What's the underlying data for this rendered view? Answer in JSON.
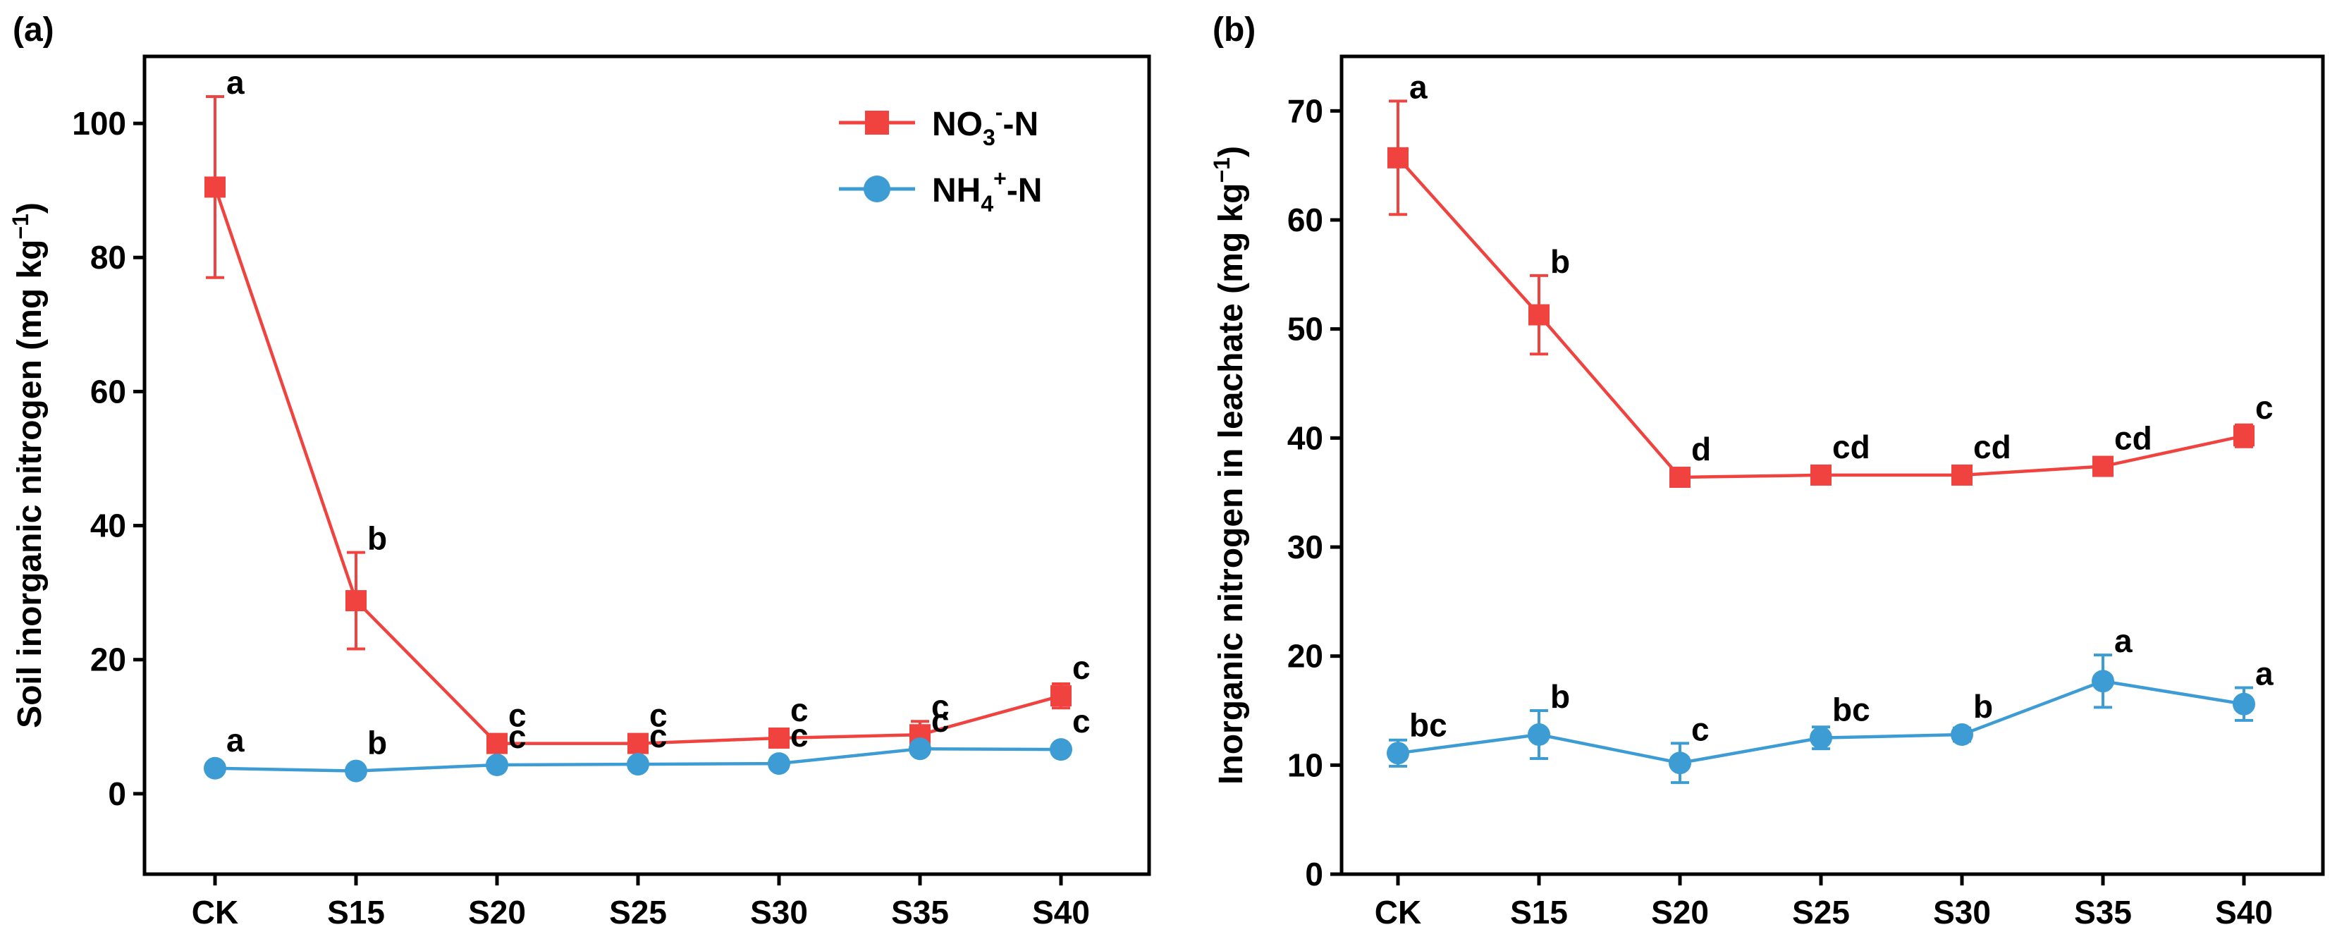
{
  "colors": {
    "nitrate": "#f0433f",
    "ammonium": "#3d9cd4",
    "axis": "#000000"
  },
  "chart_data": [
    {
      "type": "line",
      "panel_label": "(a)",
      "ylabel": "Soil inorganic nitrogen (mg kg−1)",
      "ylabel_main": "Soil inorganic nitrogen (mg kg",
      "ylabel_sup": "−1",
      "ylabel_end": ")",
      "ylim": [
        -12,
        110
      ],
      "yticks": [
        0,
        20,
        40,
        60,
        80,
        100
      ],
      "categories": [
        "CK",
        "S15",
        "S20",
        "S25",
        "S30",
        "S35",
        "S40"
      ],
      "legend": {
        "placement": "top-right",
        "entries": [
          {
            "base": "NO",
            "sub": "3",
            "sup": "-",
            "tail": "-N"
          },
          {
            "base": "NH",
            "sub": "4",
            "sup": "+",
            "tail": "-N"
          }
        ]
      },
      "series": [
        {
          "name": "NO3−-N",
          "color_key": "nitrate",
          "marker": "square",
          "values": [
            90.5,
            28.8,
            7.5,
            7.5,
            8.3,
            8.8,
            14.6
          ],
          "errors": [
            13.5,
            7.2,
            1.2,
            1.2,
            0.8,
            2.0,
            1.8
          ],
          "letters": [
            "a",
            "b",
            "c",
            "c",
            "c",
            "c",
            "c"
          ]
        },
        {
          "name": "NH4+-N",
          "color_key": "ammonium",
          "marker": "circle",
          "values": [
            3.8,
            3.4,
            4.3,
            4.4,
            4.5,
            6.7,
            6.6
          ],
          "errors": [
            0.3,
            0.3,
            0.3,
            0.3,
            0.4,
            0.5,
            0.5
          ],
          "letters": [
            "a",
            "b",
            "c",
            "c",
            "c",
            "c",
            "c"
          ]
        }
      ]
    },
    {
      "type": "line",
      "panel_label": "(b)",
      "ylabel": "Inorganic nitrogen in leachate (mg kg−1)",
      "ylabel_main": "Inorganic nitrogen in leachate (mg kg",
      "ylabel_sup": "−1",
      "ylabel_end": ")",
      "ylim": [
        0,
        75
      ],
      "yticks": [
        0,
        10,
        20,
        30,
        40,
        50,
        60,
        70
      ],
      "categories": [
        "CK",
        "S15",
        "S20",
        "S25",
        "S30",
        "S35",
        "S40"
      ],
      "series": [
        {
          "name": "NO3−-N",
          "color_key": "nitrate",
          "marker": "square",
          "values": [
            65.7,
            51.3,
            36.4,
            36.6,
            36.6,
            37.4,
            40.2
          ],
          "errors": [
            5.2,
            3.6,
            0.6,
            0.5,
            0.5,
            0.6,
            1.0
          ],
          "letters": [
            "a",
            "b",
            "d",
            "cd",
            "cd",
            "cd",
            "c"
          ]
        },
        {
          "name": "NH4+-N",
          "color_key": "ammonium",
          "marker": "circle",
          "values": [
            11.1,
            12.8,
            10.2,
            12.5,
            12.8,
            17.7,
            15.6
          ],
          "errors": [
            1.2,
            2.2,
            1.8,
            1.0,
            0.6,
            2.4,
            1.5
          ],
          "letters": [
            "bc",
            "b",
            "c",
            "bc",
            "b",
            "a",
            "a"
          ]
        }
      ]
    }
  ]
}
